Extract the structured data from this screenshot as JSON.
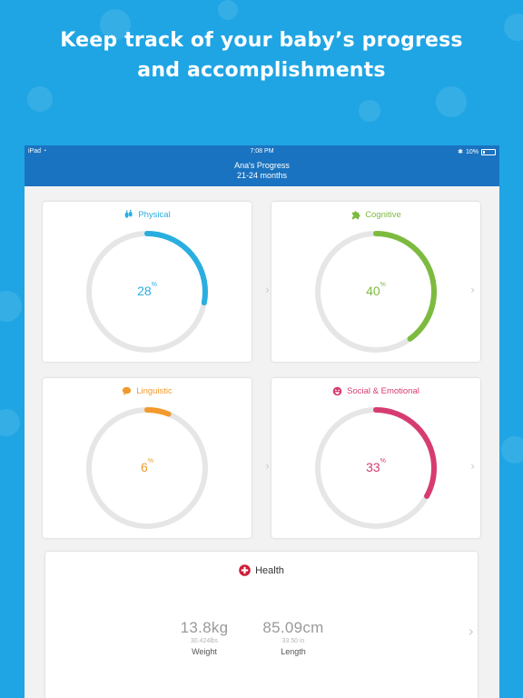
{
  "headline": {
    "line1": "Keep track of your baby’s progress",
    "line2": "and accomplishments"
  },
  "statusbar": {
    "device": "iPad",
    "time": "7:08 PM",
    "battery": "10%"
  },
  "navbar": {
    "title": "Ana's Progress",
    "subtitle": "21-24 months"
  },
  "cards": [
    {
      "key": "physical",
      "label": "Physical",
      "value": "28",
      "unit": "%",
      "progress": 0.28,
      "color": "#29aee0",
      "icon": "footprints-icon"
    },
    {
      "key": "cognitive",
      "label": "Cognitive",
      "value": "40",
      "unit": "%",
      "progress": 0.4,
      "color": "#7dbb3f",
      "icon": "puzzle-icon"
    },
    {
      "key": "linguistic",
      "label": "Linguistic",
      "value": "6",
      "unit": "%",
      "progress": 0.06,
      "color": "#f29a2e",
      "icon": "speech-bubble-icon"
    },
    {
      "key": "social",
      "label": "Social & Emotional",
      "value": "33",
      "unit": "%",
      "progress": 0.33,
      "color": "#d63c72",
      "icon": "smiley-icon"
    }
  ],
  "health": {
    "title": "Health",
    "color": "#cc1d3a",
    "icon": "medical-cross-icon",
    "weight": {
      "value": "13.8kg",
      "alt": "30.424lbs",
      "label": "Weight"
    },
    "length": {
      "value": "85.09cm",
      "alt": "33.50 in",
      "label": "Length"
    }
  },
  "colors": {
    "background": "#1fa5e4",
    "bar": "#1a73c0",
    "ring_track": "#e6e6e6"
  }
}
